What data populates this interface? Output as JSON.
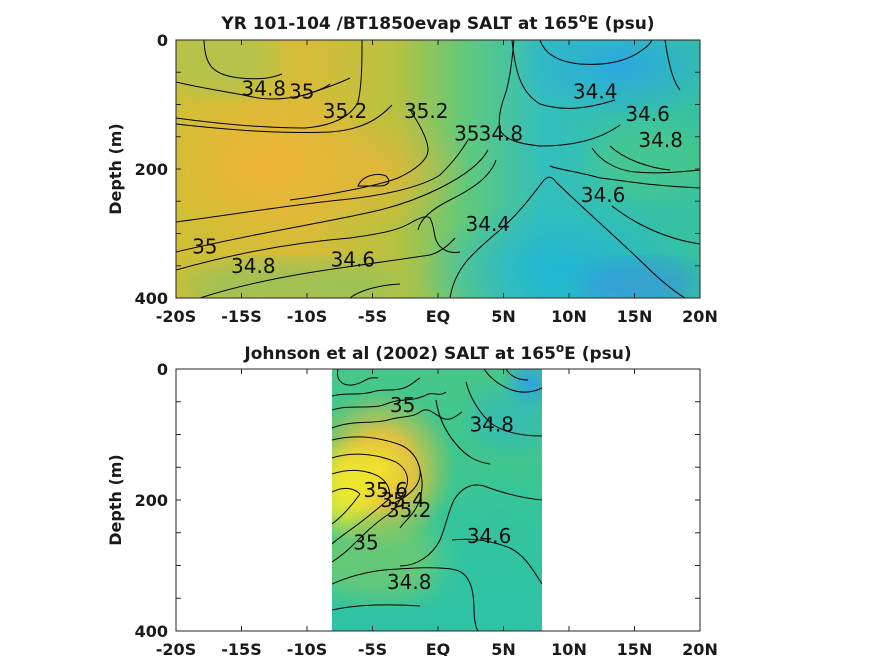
{
  "chart_data": [
    {
      "type": "contour",
      "title": "YR 101-104 /BT1850evap SALT at 165",
      "title_sup": "o",
      "title_suffix": "E (psu)",
      "ylabel": "Depth (m)",
      "xticks": [
        "-20S",
        "-15S",
        "-10S",
        "-5S",
        "EQ",
        "5N",
        "10N",
        "15N",
        "20N"
      ],
      "xtick_values": [
        -20,
        -15,
        -10,
        -5,
        0,
        5,
        10,
        15,
        20
      ],
      "yticks": [
        "0",
        "200",
        "400"
      ],
      "ytick_values": [
        0,
        200,
        400
      ],
      "xlim": [
        -20,
        20
      ],
      "ylim": [
        0,
        400
      ],
      "y_reversed": true,
      "data_extent_x": [
        -20,
        20
      ],
      "contour_labels": [
        {
          "text": "34.8",
          "x": -13.3,
          "y": 75
        },
        {
          "text": "35",
          "x": -10.4,
          "y": 80
        },
        {
          "text": "35.2",
          "x": -7.1,
          "y": 110
        },
        {
          "text": "35.2",
          "x": -0.9,
          "y": 110
        },
        {
          "text": "35",
          "x": 2.2,
          "y": 145
        },
        {
          "text": "34.8",
          "x": 4.8,
          "y": 145
        },
        {
          "text": "34.4",
          "x": 12.0,
          "y": 80
        },
        {
          "text": "34.6",
          "x": 16.0,
          "y": 115
        },
        {
          "text": "34.8",
          "x": 17.0,
          "y": 155
        },
        {
          "text": "34.6",
          "x": 12.6,
          "y": 240
        },
        {
          "text": "34.4",
          "x": 3.8,
          "y": 285
        },
        {
          "text": "34.6",
          "x": -6.5,
          "y": 340
        },
        {
          "text": "35",
          "x": -17.8,
          "y": 320
        },
        {
          "text": "34.8",
          "x": -14.1,
          "y": 350
        }
      ]
    },
    {
      "type": "contour",
      "title": "Johnson et al (2002) SALT at 165",
      "title_sup": "o",
      "title_suffix": "E (psu)",
      "ylabel": "Depth (m)",
      "xticks": [
        "-20S",
        "-15S",
        "-10S",
        "-5S",
        "EQ",
        "5N",
        "10N",
        "15N",
        "20N"
      ],
      "xtick_values": [
        -20,
        -15,
        -10,
        -5,
        0,
        5,
        10,
        15,
        20
      ],
      "yticks": [
        "0",
        "200",
        "400"
      ],
      "ytick_values": [
        0,
        200,
        400
      ],
      "xlim": [
        -20,
        20
      ],
      "ylim": [
        0,
        400
      ],
      "y_reversed": true,
      "data_extent_x": [
        -8,
        8
      ],
      "contour_labels": [
        {
          "text": "35",
          "x": -2.7,
          "y": 55
        },
        {
          "text": "34.8",
          "x": 4.1,
          "y": 85
        },
        {
          "text": "35.6",
          "x": -4.0,
          "y": 185
        },
        {
          "text": "35.4",
          "x": -2.7,
          "y": 200
        },
        {
          "text": "35.2",
          "x": -2.2,
          "y": 215
        },
        {
          "text": "34.6",
          "x": 3.9,
          "y": 255
        },
        {
          "text": "35",
          "x": -5.5,
          "y": 265
        },
        {
          "text": "34.8",
          "x": -2.2,
          "y": 325
        }
      ]
    }
  ]
}
